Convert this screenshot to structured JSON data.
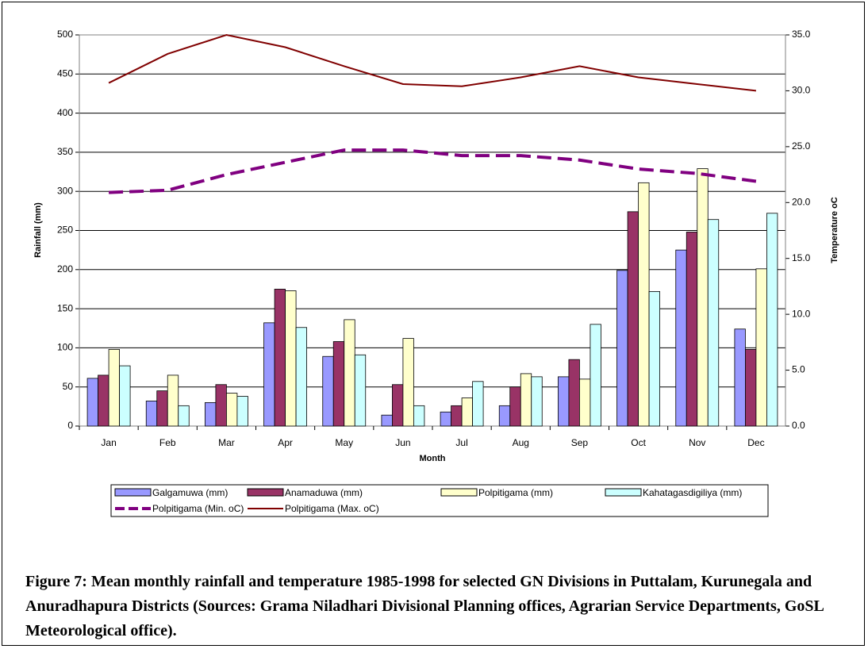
{
  "chart_data": {
    "type": "bar",
    "caption": "Figure 7: Mean monthly rainfall and temperature 1985-1998 for selected GN Divisions in Puttalam, Kurunegala and Anuradhapura Districts (Sources: Grama Niladhari Divisional Planning offices, Agrarian Service Departments, GoSL Meteorological office).",
    "x_label": "Month",
    "y_label": "Rainfall (mm)",
    "y2_label": "Temperature oC",
    "categories": [
      "Jan",
      "Feb",
      "Mar",
      "Apr",
      "May",
      "Jun",
      "Jul",
      "Aug",
      "Sep",
      "Oct",
      "Nov",
      "Dec"
    ],
    "series": [
      {
        "name": "Galgamuwa (mm)",
        "color": "#9999ff",
        "values": [
          61,
          32,
          30,
          132,
          89,
          14,
          18,
          26,
          63,
          199,
          225,
          124
        ]
      },
      {
        "name": "Anamaduwa (mm)",
        "color": "#993366",
        "values": [
          65,
          45,
          53,
          175,
          108,
          53,
          26,
          50,
          85,
          274,
          248,
          98
        ]
      },
      {
        "name": "Polpitigama (mm)",
        "color": "#ffffcc",
        "values": [
          98,
          65,
          42,
          173,
          136,
          112,
          36,
          67,
          60,
          311,
          329,
          201
        ]
      },
      {
        "name": "Kahatagasdigiliya (mm)",
        "color": "#ccffff",
        "values": [
          77,
          26,
          38,
          126,
          91,
          26,
          57,
          63,
          130,
          172,
          264,
          272
        ]
      },
      {
        "name": "Polpitigama (Min. oC)",
        "color": "#800080",
        "type": "line",
        "dashed": true,
        "axis": "y2",
        "values": [
          20.9,
          21.1,
          22.5,
          23.6,
          24.7,
          24.7,
          24.2,
          24.2,
          23.8,
          23.0,
          22.6,
          21.9
        ]
      },
      {
        "name": "Polpitigama (Max. oC)",
        "color": "#800000",
        "type": "line",
        "dashed": false,
        "axis": "y2",
        "values": [
          30.7,
          33.3,
          35.0,
          33.9,
          32.2,
          30.6,
          30.4,
          31.2,
          32.2,
          31.2,
          30.6,
          30.0
        ]
      }
    ],
    "ylim": [
      0,
      500
    ],
    "yticks": [
      0,
      50,
      100,
      150,
      200,
      250,
      300,
      350,
      400,
      450,
      500
    ],
    "y2lim": [
      0,
      35
    ],
    "y2ticks": [
      {
        "value": 0,
        "label": "0.0"
      },
      {
        "value": 5,
        "label": "5.0"
      },
      {
        "value": 10,
        "label": "10.0"
      },
      {
        "value": 15,
        "label": "15.0"
      },
      {
        "value": 20,
        "label": "20.0"
      },
      {
        "value": 25,
        "label": "25.0"
      },
      {
        "value": 30,
        "label": "30.0"
      },
      {
        "value": 35,
        "label": "35.0"
      }
    ],
    "grid": true
  }
}
